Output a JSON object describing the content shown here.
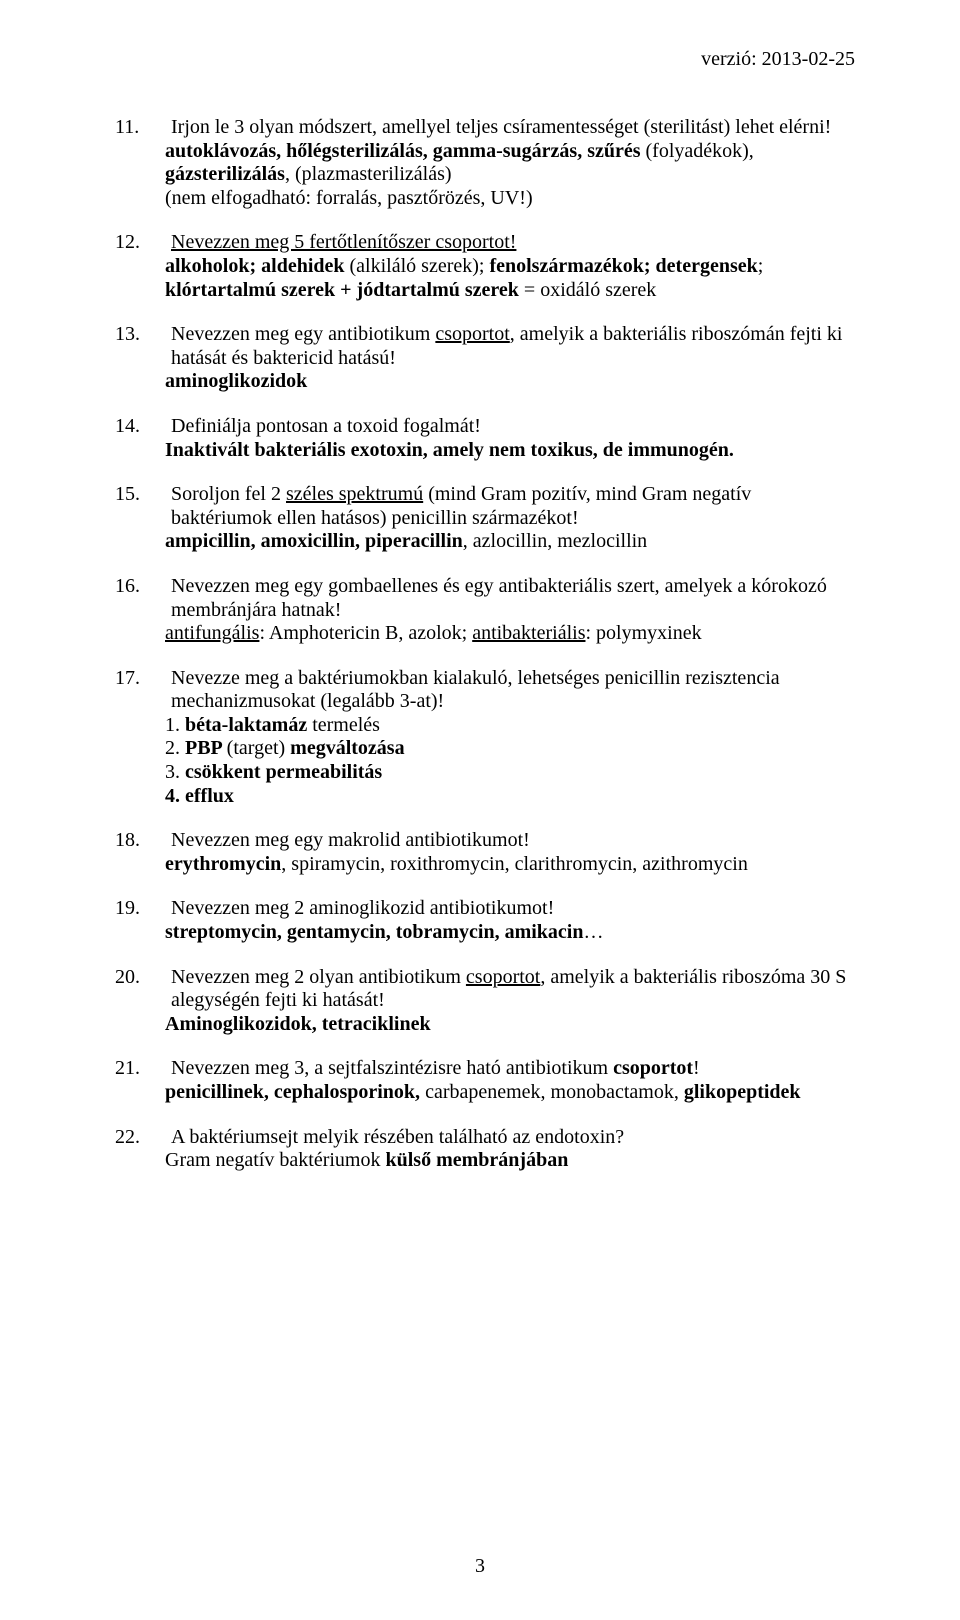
{
  "header": {
    "version": "verzió: 2013-02-25"
  },
  "items": [
    {
      "num": "11.",
      "q": "Irjon le 3 olyan módszert, amellyel teljes csíramentességet (sterilitást) lehet elérni!",
      "a1": "autoklávozás, hőlégsterilizálás, gamma-sugárzás, szűrés ",
      "a2": "(folyadékok), ",
      "a3": "gázsterilizálás",
      "a4": ", (plazmasterilizálás)",
      "a5": "(nem elfogadható: forralás, pasztőrözés, UV!)"
    },
    {
      "num": "12.",
      "q": "Nevezzen meg 5 fertőtlenítőszer csoportot!",
      "a1": "alkoholok; aldehidek ",
      "a2": "(alkiláló szerek); ",
      "a3": "fenolszármazékok; detergensek",
      "a4": "; ",
      "a5": "klórtartalmú szerek + jódtartalmú szerek ",
      "a6": "= oxidáló szerek"
    },
    {
      "num": "13.",
      "q1": "Nevezzen meg egy antibiotikum ",
      "q2": "csoportot",
      "q3": ", amelyik a bakteriális riboszómán fejti ki hatását és baktericid hatású!",
      "a1": "aminoglikozidok"
    },
    {
      "num": "14.",
      "q": "Definiálja pontosan a toxoid fogalmát!",
      "a1": "Inaktivált bakteriális exotoxin, amely nem toxikus, de immunogén."
    },
    {
      "num": "15.",
      "q1": "Soroljon fel 2 ",
      "q2": "széles spektrumú",
      "q3": " (mind Gram pozitív, mind Gram negatív baktériumok ellen hatásos) penicillin származékot!",
      "a1": "ampicillin, amoxicillin, piperacillin",
      "a2": ", azlocillin, mezlocillin"
    },
    {
      "num": "16.",
      "q": "Nevezzen meg egy gombaellenes és egy antibakteriális szert, amelyek a kórokozó membránjára hatnak!",
      "a1": "antifungális",
      "a2": ": Amphotericin B, azolok; ",
      "a3": "antibakteriális",
      "a4": ": polymyxinek"
    },
    {
      "num": "17.",
      "q": "Nevezze meg a baktériumokban kialakuló, lehetséges penicillin rezisztencia mechanizmusokat (legalább 3-at)!",
      "l1a": "1. ",
      "l1b": "béta-laktamáz ",
      "l1c": "termelés",
      "l2a": "2. ",
      "l2b": "PBP ",
      "l2c": "(target) ",
      "l2d": "megváltozása",
      "l3a": "3. ",
      "l3b": "csökkent permeabilitás",
      "l4a": "4. efflux"
    },
    {
      "num": "18.",
      "q": "Nevezzen meg egy makrolid antibiotikumot!",
      "a1": "erythromycin",
      "a2": ", spiramycin, roxithromycin, clarithromycin, azithromycin"
    },
    {
      "num": "19.",
      "q": "Nevezzen meg 2 aminoglikozid antibiotikumot!",
      "a1": "streptomycin, gentamycin, tobramycin, amikacin",
      "a2": "…"
    },
    {
      "num": "20.",
      "q1": "Nevezzen meg 2 olyan antibiotikum ",
      "q2": "csoportot",
      "q3": ", amelyik a bakteriális riboszóma 30 S alegységén fejti ki hatását!",
      "a1": "Aminoglikozidok, tetraciklinek"
    },
    {
      "num": "21.",
      "q1": "Nevezzen meg 3, a sejtfalszintézisre ható antibiotikum ",
      "q2": "csoportot",
      "q3": "!",
      "a1": "penicillinek, cephalosporinok, ",
      "a2": "carbapenemek, monobactamok, ",
      "a3": "glikopeptidek"
    },
    {
      "num": "22.",
      "q": "A baktériumsejt melyik részében található az endotoxin?",
      "a1": "Gram negatív baktériumok ",
      "a2": "külső membránjában"
    }
  ],
  "pagenum": "3"
}
